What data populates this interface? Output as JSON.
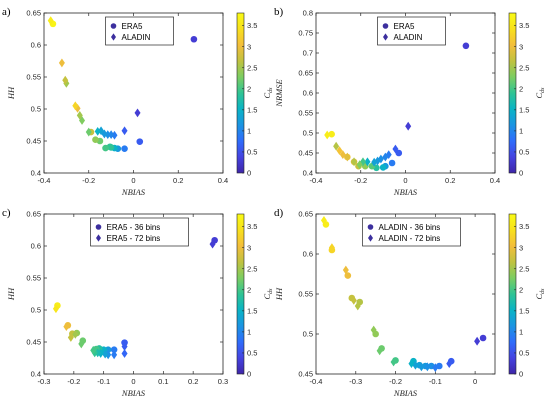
{
  "chart_data": [
    {
      "panel_label": "a)",
      "type": "scatter",
      "xlabel": "NBIAS",
      "ylabel": "HH",
      "xlim": [
        -0.4,
        0.4
      ],
      "ylim": [
        0.4,
        0.65
      ],
      "xticks": [
        "-0.4",
        "-0.2",
        "0",
        "0.2",
        "0.4"
      ],
      "yticks": [
        "0.4",
        "0.45",
        "0.5",
        "0.55",
        "0.6",
        "0.65"
      ],
      "legend_position": "top-center",
      "series": [
        {
          "name": "ERA5",
          "marker": "circle",
          "points": [
            [
              0.27,
              0.609,
              0.3
            ],
            [
              0.028,
              0.449,
              0.6
            ],
            [
              -0.04,
              0.438,
              0.9
            ],
            [
              -0.07,
              0.438,
              1.2
            ],
            [
              -0.085,
              0.439,
              1.5
            ],
            [
              -0.1,
              0.44,
              1.8
            ],
            [
              -0.105,
              0.441,
              1.9
            ],
            [
              -0.125,
              0.439,
              2.0
            ],
            [
              -0.15,
              0.45,
              2.2
            ],
            [
              -0.17,
              0.452,
              2.4
            ],
            [
              -0.19,
              0.464,
              2.7
            ],
            [
              -0.36,
              0.633,
              3.7
            ]
          ]
        },
        {
          "name": "ALADIN",
          "marker": "diamond",
          "points": [
            [
              0.018,
              0.494,
              0.3
            ],
            [
              -0.04,
              0.466,
              0.6
            ],
            [
              -0.085,
              0.459,
              0.9
            ],
            [
              -0.1,
              0.46,
              1.0
            ],
            [
              -0.115,
              0.46,
              1.1
            ],
            [
              -0.13,
              0.461,
              1.2
            ],
            [
              -0.145,
              0.466,
              1.3
            ],
            [
              -0.16,
              0.465,
              1.5
            ],
            [
              -0.2,
              0.464,
              2.2
            ],
            [
              -0.23,
              0.482,
              2.3
            ],
            [
              -0.24,
              0.49,
              2.5
            ],
            [
              -0.25,
              0.501,
              3.0
            ],
            [
              -0.26,
              0.505,
              3.3
            ],
            [
              -0.3,
              0.54,
              2.5
            ],
            [
              -0.305,
              0.545,
              2.7
            ],
            [
              -0.32,
              0.572,
              3.0
            ],
            [
              -0.37,
              0.638,
              3.6
            ]
          ]
        }
      ]
    },
    {
      "panel_label": "b)",
      "type": "scatter",
      "xlabel": "NBIAS",
      "ylabel": "NRMSE",
      "xlim": [
        -0.4,
        0.4
      ],
      "ylim": [
        0.4,
        0.8
      ],
      "xticks": [
        "-0.4",
        "-0.2",
        "0",
        "0.2",
        "0.4"
      ],
      "yticks": [
        "0.4",
        "0.45",
        "0.5",
        "0.55",
        "0.6",
        "0.65",
        "0.7",
        "0.75",
        "0.8"
      ],
      "legend_position": "top-center",
      "series": [
        {
          "name": "ERA5",
          "marker": "circle",
          "points": [
            [
              0.27,
              0.718,
              0.3
            ],
            [
              -0.03,
              0.45,
              0.6
            ],
            [
              -0.06,
              0.425,
              0.9
            ],
            [
              -0.09,
              0.417,
              1.2
            ],
            [
              -0.1,
              0.414,
              1.5
            ],
            [
              -0.13,
              0.413,
              1.8
            ],
            [
              -0.15,
              0.417,
              2.1
            ],
            [
              -0.18,
              0.417,
              2.4
            ],
            [
              -0.21,
              0.417,
              2.7
            ],
            [
              -0.23,
              0.428,
              2.9
            ],
            [
              -0.26,
              0.44,
              3.1
            ],
            [
              -0.33,
              0.497,
              3.6
            ]
          ]
        },
        {
          "name": "ALADIN",
          "marker": "diamond",
          "points": [
            [
              0.012,
              0.517,
              0.3
            ],
            [
              -0.045,
              0.46,
              0.6
            ],
            [
              -0.075,
              0.446,
              0.9
            ],
            [
              -0.09,
              0.44,
              1.0
            ],
            [
              -0.11,
              0.435,
              1.1
            ],
            [
              -0.125,
              0.43,
              1.2
            ],
            [
              -0.14,
              0.427,
              1.3
            ],
            [
              -0.17,
              0.428,
              1.5
            ],
            [
              -0.19,
              0.428,
              2.0
            ],
            [
              -0.205,
              0.421,
              2.3
            ],
            [
              -0.23,
              0.428,
              2.6
            ],
            [
              -0.26,
              0.44,
              2.9
            ],
            [
              -0.28,
              0.446,
              3.0
            ],
            [
              -0.295,
              0.456,
              3.1
            ],
            [
              -0.31,
              0.467,
              2.6
            ],
            [
              -0.35,
              0.495,
              3.6
            ]
          ]
        }
      ]
    },
    {
      "panel_label": "c)",
      "type": "scatter",
      "xlabel": "NBIAS",
      "ylabel": "HH",
      "xlim": [
        -0.3,
        0.3
      ],
      "ylim": [
        0.4,
        0.65
      ],
      "xticks": [
        "-0.3",
        "-0.2",
        "-0.1",
        "0",
        "0.1",
        "0.2",
        "0.3"
      ],
      "yticks": [
        "0.4",
        "0.45",
        "0.5",
        "0.55",
        "0.6",
        "0.65"
      ],
      "legend_position": "top-center",
      "series": [
        {
          "name": "ERA5 - 36 bins",
          "marker": "circle",
          "points": [
            [
              0.272,
              0.609,
              0.3
            ],
            [
              -0.03,
              0.449,
              0.6
            ],
            [
              -0.065,
              0.438,
              0.9
            ],
            [
              -0.085,
              0.438,
              1.2
            ],
            [
              -0.1,
              0.438,
              1.5
            ],
            [
              -0.115,
              0.44,
              1.8
            ],
            [
              -0.125,
              0.439,
              2.0
            ],
            [
              -0.17,
              0.452,
              2.2
            ],
            [
              -0.19,
              0.464,
              2.4
            ],
            [
              -0.205,
              0.463,
              2.7
            ],
            [
              -0.22,
              0.476,
              3.0
            ],
            [
              -0.255,
              0.507,
              3.6
            ]
          ]
        },
        {
          "name": "ERA5 - 72 bins",
          "marker": "diamond",
          "points": [
            [
              0.265,
              0.603,
              0.3
            ],
            [
              -0.03,
              0.443,
              0.6
            ],
            [
              -0.03,
              0.432,
              0.7
            ],
            [
              -0.065,
              0.43,
              0.9
            ],
            [
              -0.085,
              0.43,
              1.1
            ],
            [
              -0.095,
              0.431,
              1.3
            ],
            [
              -0.11,
              0.432,
              1.5
            ],
            [
              -0.12,
              0.433,
              1.7
            ],
            [
              -0.13,
              0.433,
              1.9
            ],
            [
              -0.135,
              0.437,
              2.0
            ],
            [
              -0.175,
              0.447,
              2.2
            ],
            [
              -0.195,
              0.462,
              2.5
            ],
            [
              -0.21,
              0.457,
              2.7
            ],
            [
              -0.225,
              0.474,
              3.0
            ],
            [
              -0.26,
              0.502,
              3.5
            ]
          ]
        }
      ]
    },
    {
      "panel_label": "d)",
      "type": "scatter",
      "xlabel": "NBIAS",
      "ylabel": "HH",
      "xlim": [
        -0.4,
        0.05
      ],
      "ylim": [
        0.45,
        0.65
      ],
      "xticks": [
        "-0.4",
        "-0.3",
        "-0.2",
        "-0.1",
        "0"
      ],
      "yticks": [
        "0.45",
        "0.5",
        "0.55",
        "0.6",
        "0.65"
      ],
      "legend_position": "top-center",
      "series": [
        {
          "name": "ALADIN - 36 bins",
          "marker": "circle",
          "points": [
            [
              0.02,
              0.495,
              0.3
            ],
            [
              -0.06,
              0.466,
              0.6
            ],
            [
              -0.09,
              0.46,
              0.9
            ],
            [
              -0.11,
              0.46,
              1.1
            ],
            [
              -0.125,
              0.46,
              1.2
            ],
            [
              -0.14,
              0.461,
              1.3
            ],
            [
              -0.155,
              0.466,
              1.5
            ],
            [
              -0.2,
              0.467,
              2.0
            ],
            [
              -0.235,
              0.482,
              2.2
            ],
            [
              -0.25,
              0.5,
              2.4
            ],
            [
              -0.29,
              0.54,
              2.6
            ],
            [
              -0.31,
              0.545,
              2.7
            ],
            [
              -0.32,
              0.573,
              3.0
            ],
            [
              -0.36,
              0.605,
              3.3
            ],
            [
              -0.375,
              0.637,
              3.6
            ]
          ]
        },
        {
          "name": "ALADIN - 72 bins",
          "marker": "diamond",
          "points": [
            [
              0.005,
              0.491,
              0.3
            ],
            [
              -0.065,
              0.463,
              0.6
            ],
            [
              -0.1,
              0.458,
              0.9
            ],
            [
              -0.12,
              0.459,
              1.1
            ],
            [
              -0.135,
              0.459,
              1.2
            ],
            [
              -0.15,
              0.461,
              1.3
            ],
            [
              -0.16,
              0.463,
              1.5
            ],
            [
              -0.205,
              0.465,
              2.0
            ],
            [
              -0.24,
              0.479,
              2.2
            ],
            [
              -0.255,
              0.505,
              2.4
            ],
            [
              -0.295,
              0.535,
              2.6
            ],
            [
              -0.305,
              0.542,
              2.7
            ],
            [
              -0.325,
              0.58,
              3.0
            ],
            [
              -0.36,
              0.608,
              3.3
            ],
            [
              -0.38,
              0.642,
              3.6
            ]
          ]
        }
      ]
    }
  ],
  "colorbar": {
    "label_main": "C",
    "label_sub": "ds",
    "range": [
      0,
      3.8
    ],
    "ticks": [
      "0",
      "0.5",
      "1",
      "1.5",
      "2",
      "2.5",
      "3",
      "3.5"
    ],
    "colormap": [
      "#3e26a8",
      "#4543e0",
      "#2f6cfb",
      "#1b94e2",
      "#0ab4c5",
      "#30c494",
      "#7ccd62",
      "#c0c240",
      "#f3be3b",
      "#f8e01c",
      "#f9fb15"
    ],
    "marker_color": "#3c2f9e"
  }
}
